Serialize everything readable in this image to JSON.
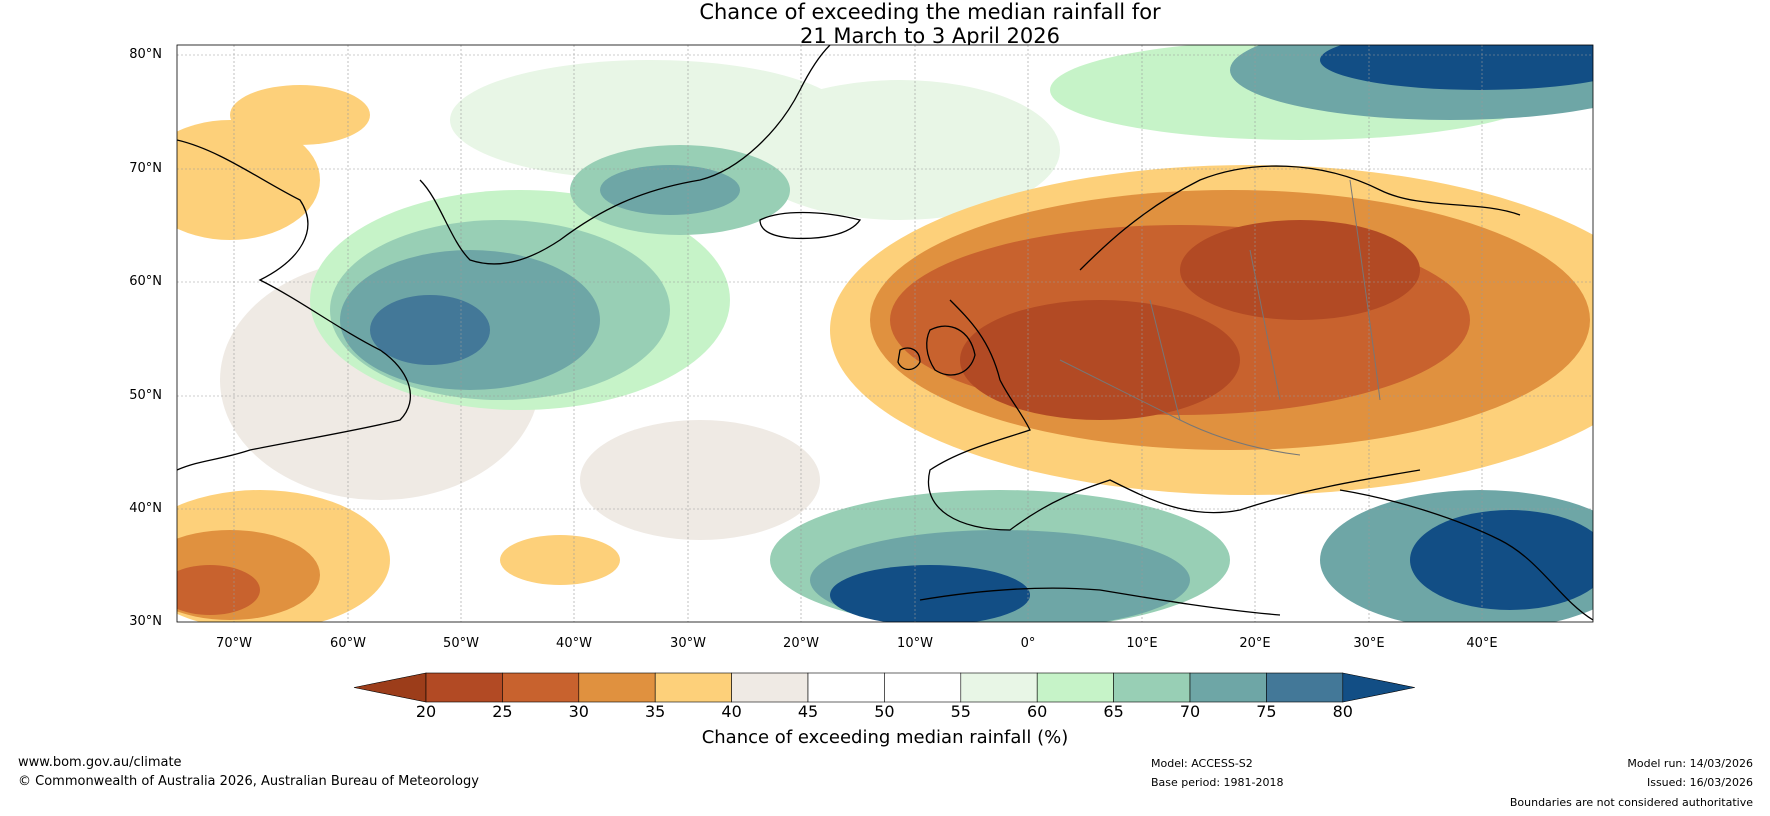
{
  "title": {
    "line1": "Chance of exceeding the median rainfall for",
    "line2": "21 March to 3 April 2026"
  },
  "map": {
    "lat_labels": [
      "80°N",
      "70°N",
      "60°N",
      "50°N",
      "40°N",
      "30°N"
    ],
    "lon_labels": [
      "70°W",
      "60°W",
      "50°W",
      "40°W",
      "30°W",
      "20°W",
      "10°W",
      "0°",
      "10°E",
      "20°E",
      "30°E",
      "40°E"
    ]
  },
  "colorbar": {
    "ticks": [
      "20",
      "25",
      "30",
      "35",
      "40",
      "45",
      "50",
      "55",
      "60",
      "65",
      "70",
      "75",
      "80"
    ],
    "colors": [
      "#9c3d1a",
      "#b24a24",
      "#c8622e",
      "#e0913f",
      "#fdd07a",
      "#efeae4",
      "#ffffff",
      "#ffffff",
      "#e8f6e6",
      "#c6f3c8",
      "#98cfb5",
      "#6ea6a6",
      "#437898",
      "#124e85"
    ],
    "label": "Chance of exceeding median rainfall (%)"
  },
  "footer": {
    "website": "www.bom.gov.au/climate",
    "copyright": "© Commonwealth of Australia 2026, Australian Bureau of Meteorology",
    "model": "Model: ACCESS-S2",
    "base_period": "Base period: 1981-2018",
    "model_run": "Model run: 14/03/2026",
    "issued": "Issued: 16/03/2026",
    "disclaimer": "Boundaries are not considered authoritative"
  }
}
